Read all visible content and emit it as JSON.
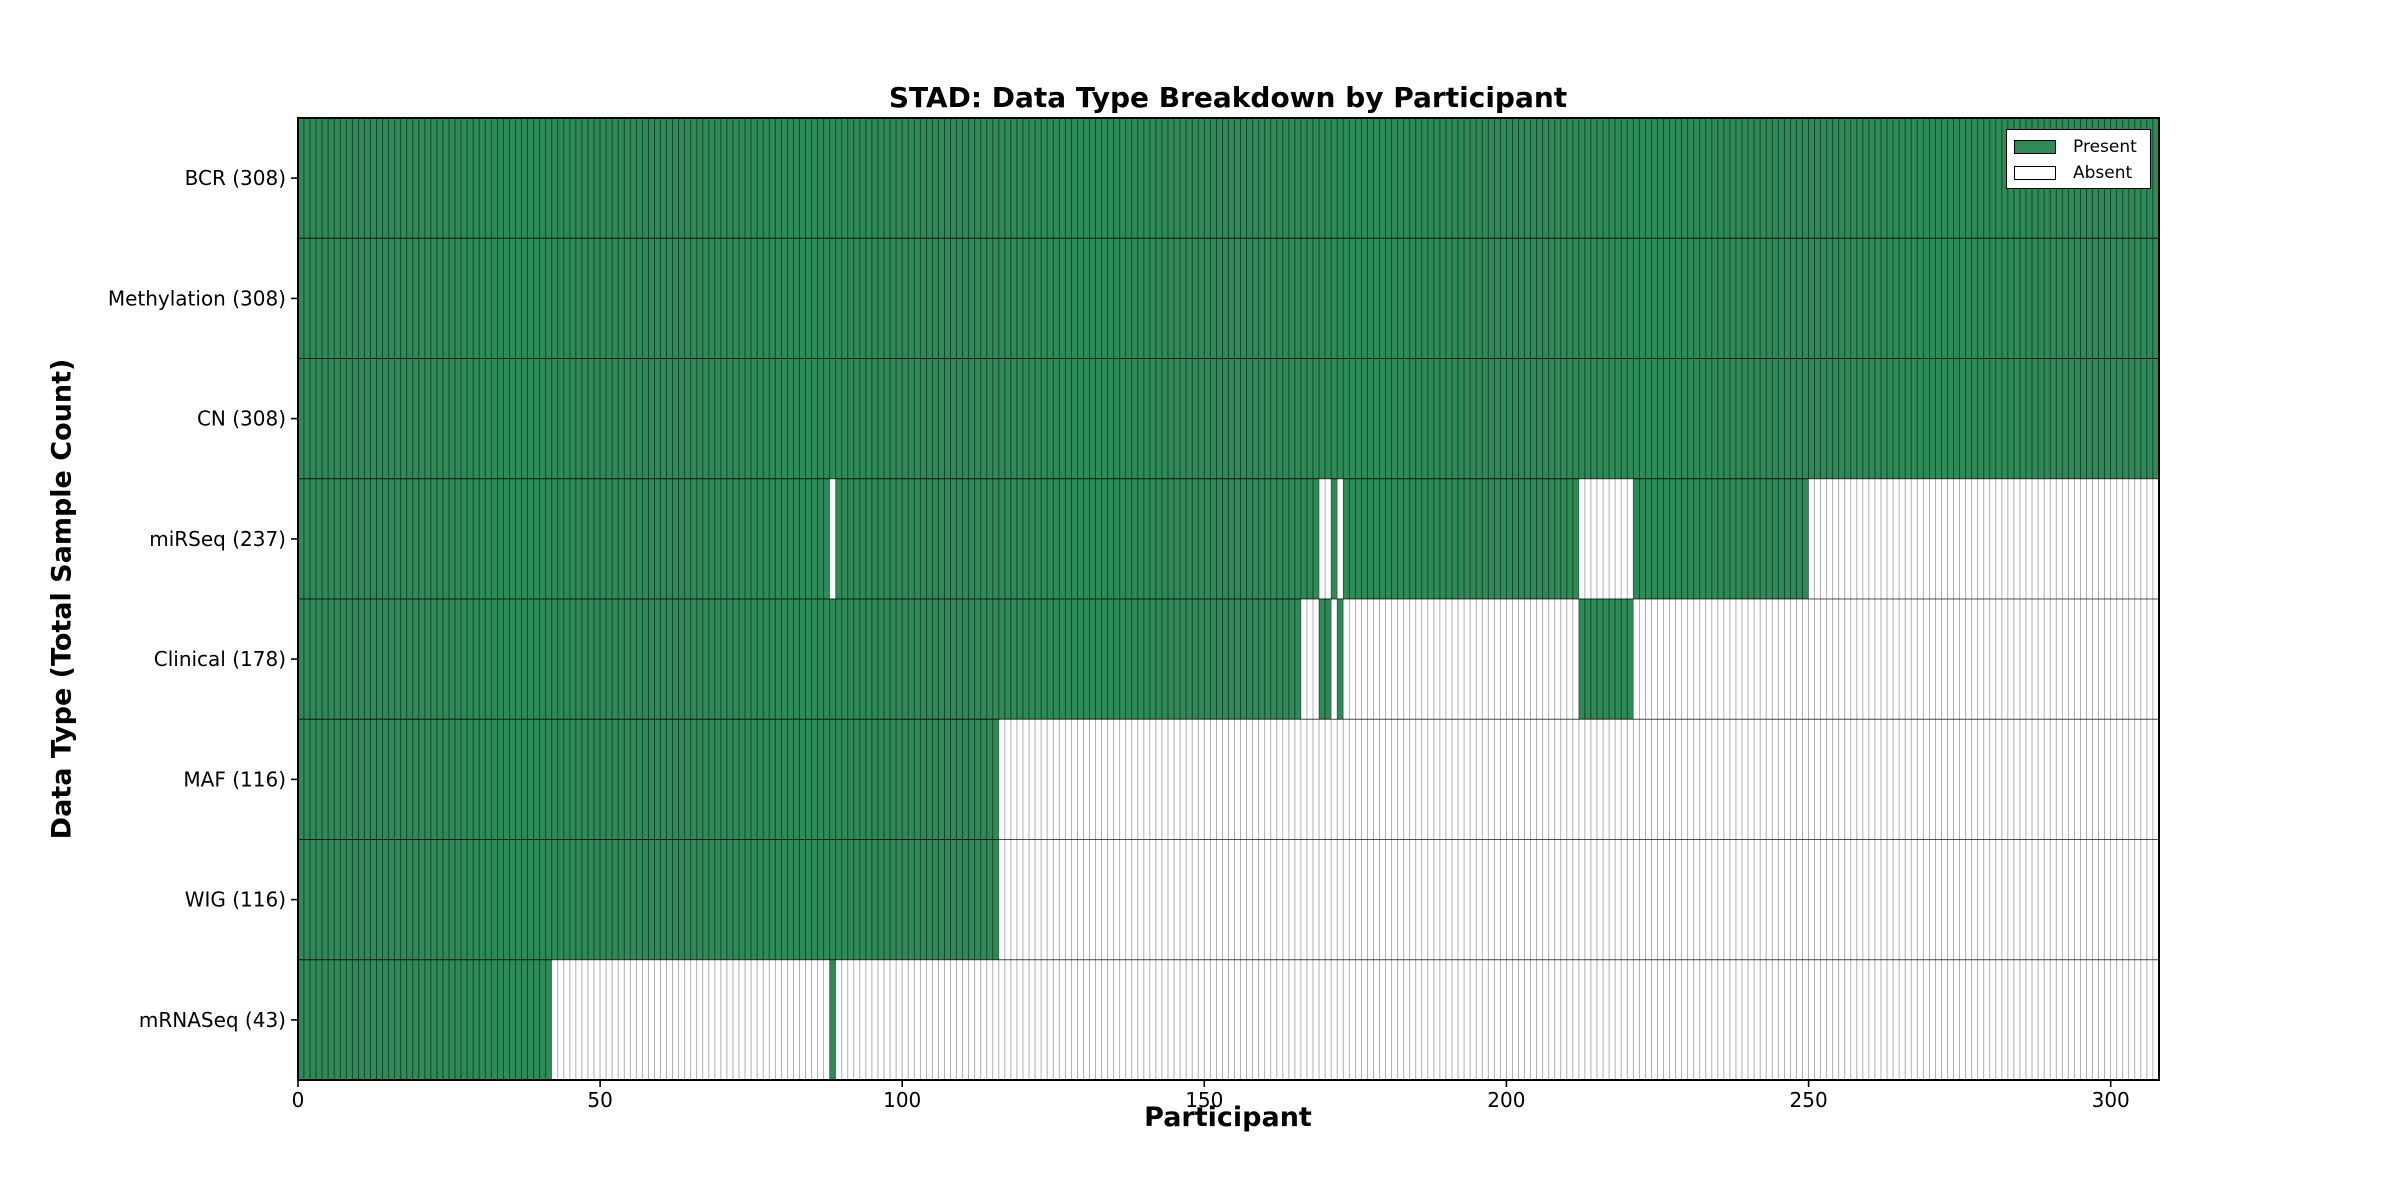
{
  "figure": {
    "title": "STAD: Data Type Breakdown by Participant",
    "xlabel": "Participant",
    "ylabel": "Data Type (Total Sample Count)"
  },
  "legend": {
    "position": "upper-right",
    "items": [
      {
        "label": "Present",
        "color": "#2e8b57"
      },
      {
        "label": "Absent",
        "color": "#ffffff"
      }
    ]
  },
  "chart_data": {
    "type": "heatmap",
    "title": "STAD: Data Type Breakdown by Participant",
    "xlabel": "Participant",
    "ylabel": "Data Type (Total Sample Count)",
    "x_ticks": [
      0,
      50,
      100,
      150,
      200,
      250,
      300
    ],
    "xlim": [
      0,
      308
    ],
    "n_participants": 308,
    "grid": false,
    "legend_entries": [
      "Present",
      "Absent"
    ],
    "legend_position": "upper right",
    "colors": {
      "present": "#2e8b57",
      "absent": "#ffffff",
      "edge": "#000000"
    },
    "categories": [
      "BCR (308)",
      "Methylation (308)",
      "CN (308)",
      "miRSeq (237)",
      "Clinical (178)",
      "MAF (116)",
      "WIG (116)",
      "mRNASeq (43)"
    ],
    "rows": [
      {
        "label": "BCR (308)",
        "data_type": "BCR",
        "total_samples": 308,
        "present_ranges": [
          [
            0,
            308
          ]
        ]
      },
      {
        "label": "Methylation (308)",
        "data_type": "Methylation",
        "total_samples": 308,
        "present_ranges": [
          [
            0,
            308
          ]
        ]
      },
      {
        "label": "CN (308)",
        "data_type": "CN",
        "total_samples": 308,
        "present_ranges": [
          [
            0,
            308
          ]
        ]
      },
      {
        "label": "miRSeq (237)",
        "data_type": "miRSeq",
        "total_samples": 237,
        "present_ranges": [
          [
            0,
            88
          ],
          [
            89,
            169
          ],
          [
            171,
            172
          ],
          [
            173,
            212
          ],
          [
            221,
            250
          ]
        ]
      },
      {
        "label": "Clinical (178)",
        "data_type": "Clinical",
        "total_samples": 178,
        "present_ranges": [
          [
            0,
            166
          ],
          [
            169,
            171
          ],
          [
            172,
            173
          ],
          [
            212,
            221
          ]
        ]
      },
      {
        "label": "MAF (116)",
        "data_type": "MAF",
        "total_samples": 116,
        "present_ranges": [
          [
            0,
            116
          ]
        ]
      },
      {
        "label": "WIG (116)",
        "data_type": "WIG",
        "total_samples": 116,
        "present_ranges": [
          [
            0,
            116
          ]
        ]
      },
      {
        "label": "mRNASeq (43)",
        "data_type": "mRNASeq",
        "total_samples": 43,
        "present_ranges": [
          [
            0,
            42
          ],
          [
            88,
            89
          ]
        ]
      }
    ]
  }
}
